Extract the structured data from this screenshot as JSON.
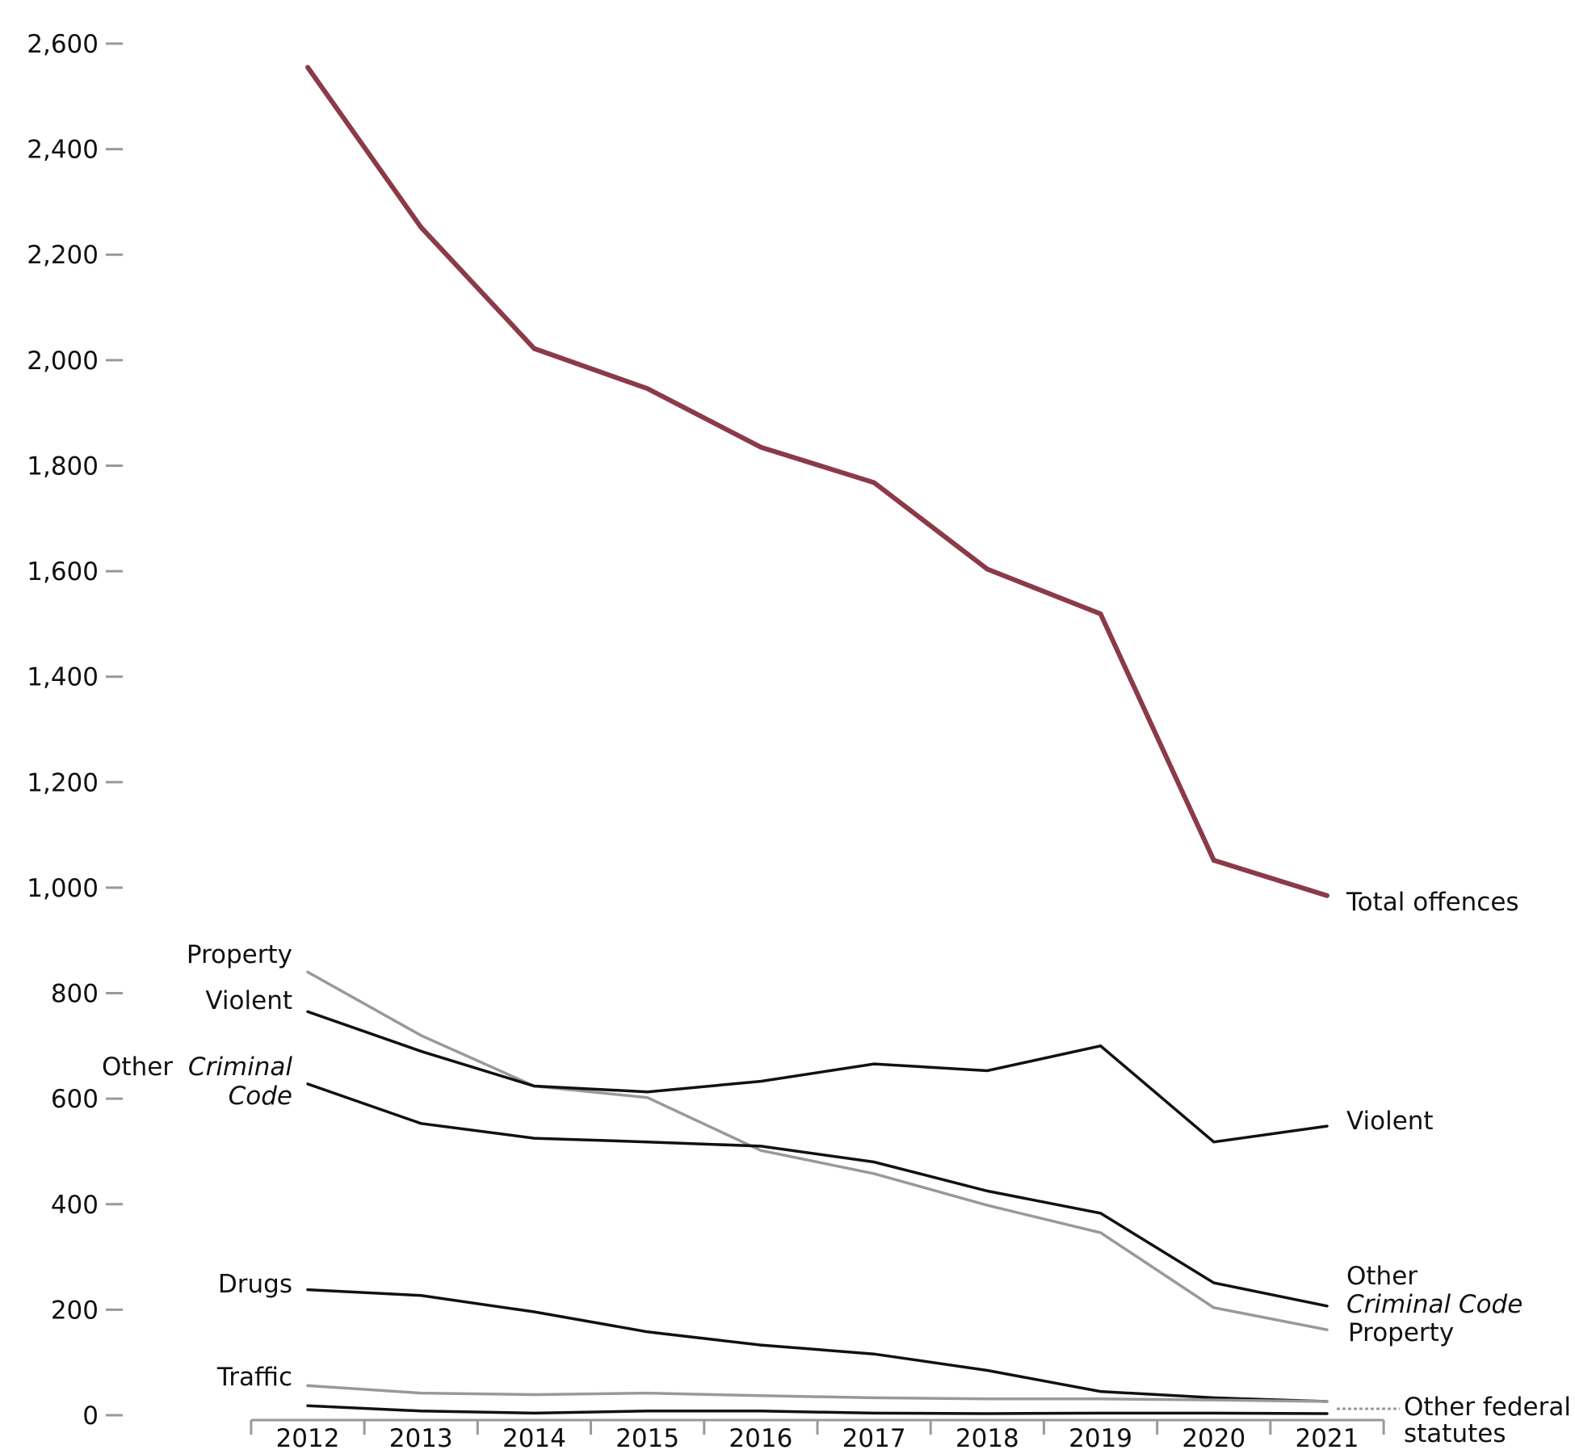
{
  "chart_data": {
    "type": "line",
    "title": "",
    "xlabel": "",
    "ylabel": "",
    "x": [
      "2012",
      "2013",
      "2014",
      "2015",
      "2016",
      "2017",
      "2018",
      "2019",
      "2020",
      "2021"
    ],
    "ylim": [
      0,
      2600
    ],
    "yticks": [
      {
        "value": 0,
        "label": "0"
      },
      {
        "value": 200,
        "label": "200"
      },
      {
        "value": 400,
        "label": "400"
      },
      {
        "value": 600,
        "label": "600"
      },
      {
        "value": 800,
        "label": "800"
      },
      {
        "value": 1000,
        "label": "1,000"
      },
      {
        "value": 1200,
        "label": "1,200"
      },
      {
        "value": 1400,
        "label": "1,400"
      },
      {
        "value": 1600,
        "label": "1,600"
      },
      {
        "value": 1800,
        "label": "1,800"
      },
      {
        "value": 2000,
        "label": "2,000"
      },
      {
        "value": 2200,
        "label": "2,200"
      },
      {
        "value": 2400,
        "label": "2,400"
      },
      {
        "value": 2600,
        "label": "2,600"
      }
    ],
    "series": [
      {
        "id": "total",
        "name": "Total offences",
        "color": "#8b3a48",
        "values": [
          2555,
          2252,
          2022,
          1946,
          1835,
          1768,
          1604,
          1519,
          1052,
          985
        ]
      },
      {
        "id": "property",
        "name": "Property",
        "color": "#999999",
        "values": [
          840,
          720,
          624,
          602,
          502,
          458,
          398,
          346,
          204,
          162
        ]
      },
      {
        "id": "violent",
        "name": "Violent",
        "color": "#111111",
        "values": [
          765,
          690,
          624,
          613,
          633,
          666,
          653,
          700,
          518,
          548
        ]
      },
      {
        "id": "other_cc",
        "name": "Other Criminal Code",
        "color": "#111111",
        "values": [
          628,
          553,
          525,
          518,
          510,
          480,
          425,
          383,
          251,
          207
        ]
      },
      {
        "id": "drugs",
        "name": "Drugs",
        "color": "#111111",
        "values": [
          238,
          227,
          196,
          158,
          133,
          116,
          85,
          45,
          33,
          26
        ]
      },
      {
        "id": "traffic",
        "name": "Traffic",
        "color": "#999999",
        "values": [
          56,
          42,
          39,
          42,
          37,
          33,
          31,
          31,
          29,
          26
        ]
      },
      {
        "id": "other_fed",
        "name": "Other federal statutes",
        "color": "#111111",
        "values": [
          18,
          8,
          4,
          8,
          8,
          4,
          3,
          4,
          4,
          3
        ]
      }
    ],
    "labels": {
      "left_property": "Property",
      "left_violent": "Violent",
      "left_other_a": "Other",
      "left_other_b": "Criminal",
      "left_other_c": "Code",
      "left_drugs": "Drugs",
      "left_traffic": "Traffic",
      "right_total": "Total offences",
      "right_violent": "Violent",
      "right_other_a": "Other",
      "right_other_b": "Criminal Code",
      "right_property": "Property",
      "right_fed_a": "Other federal",
      "right_fed_b": "statutes"
    }
  }
}
